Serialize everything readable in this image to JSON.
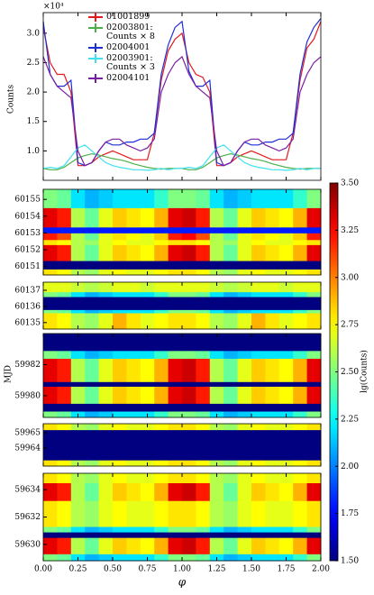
{
  "heatmap_ylabel": "MJD",
  "phase_bins": [
    0,
    0.1,
    0.2,
    0.3,
    0.4,
    0.5,
    0.6,
    0.7,
    0.8,
    0.9,
    1.0,
    1.1,
    1.2,
    1.3,
    1.4,
    1.5,
    1.6,
    1.7,
    1.8,
    1.9,
    2.0
  ],
  "colorbar": {
    "label": "lg(Counts)",
    "clim": [
      1.5,
      3.5
    ],
    "ticks": [
      {
        "value": 1.5,
        "label": "1.50"
      },
      {
        "value": 1.75,
        "label": "1.75"
      },
      {
        "value": 2.0,
        "label": "2.00"
      },
      {
        "value": 2.25,
        "label": "2.25"
      },
      {
        "value": 2.5,
        "label": "2.50"
      },
      {
        "value": 2.75,
        "label": "2.75"
      },
      {
        "value": 3.0,
        "label": "3.00"
      },
      {
        "value": 3.25,
        "label": "3.25"
      },
      {
        "value": 3.5,
        "label": "3.50"
      }
    ]
  },
  "chart_data": [
    {
      "type": "line",
      "ylabel": "Counts",
      "y_offset_label": "×10⁴",
      "x": [
        0,
        0.05,
        0.1,
        0.15,
        0.2,
        0.25,
        0.3,
        0.35,
        0.4,
        0.45,
        0.5,
        0.55,
        0.6,
        0.65,
        0.7,
        0.75,
        0.8,
        0.85,
        0.9,
        0.95,
        1.0,
        1.05,
        1.1,
        1.15,
        1.2,
        1.25,
        1.3,
        1.35,
        1.4,
        1.45,
        1.5,
        1.55,
        1.6,
        1.65,
        1.7,
        1.75,
        1.8,
        1.85,
        1.9,
        1.95,
        2.0
      ],
      "xlim": [
        0,
        2
      ],
      "ylim": [
        5000,
        33500
      ],
      "yticks": [
        {
          "value": 10000,
          "label": "1.0"
        },
        {
          "value": 15000,
          "label": "1.5"
        },
        {
          "value": 20000,
          "label": "2.0"
        },
        {
          "value": 25000,
          "label": "2.5"
        },
        {
          "value": 30000,
          "label": "3.0"
        }
      ],
      "series": [
        {
          "name": "01001899",
          "color": "#e41a1c",
          "values": [
            31000,
            25000,
            23000,
            23000,
            20000,
            7500,
            7500,
            8000,
            9000,
            9500,
            10000,
            9500,
            9000,
            8500,
            8500,
            8500,
            13000,
            22000,
            27000,
            29000,
            30000,
            25000,
            23000,
            22500,
            20000,
            7500,
            7500,
            8000,
            9000,
            9500,
            10000,
            9500,
            9000,
            8500,
            8500,
            8500,
            13000,
            22000,
            27500,
            29000,
            32000
          ]
        },
        {
          "name": "02003801: Counts × 8",
          "color": "#4daf4a",
          "values": [
            7000,
            6800,
            6800,
            7200,
            8000,
            8800,
            9200,
            9500,
            9300,
            9000,
            8700,
            8500,
            8200,
            7800,
            7500,
            7200,
            7000,
            6900,
            7000,
            7000,
            7000,
            6800,
            6800,
            7200,
            8000,
            8800,
            9200,
            9500,
            9300,
            9000,
            8700,
            8500,
            8200,
            7800,
            7500,
            7200,
            7000,
            6900,
            7000,
            7000,
            7000
          ]
        },
        {
          "name": "02004001",
          "color": "#1f2fd6",
          "values": [
            32000,
            23000,
            21000,
            21000,
            22000,
            8000,
            7500,
            8000,
            10000,
            11500,
            11000,
            11000,
            11500,
            11500,
            12000,
            12000,
            13000,
            23000,
            28000,
            31000,
            32000,
            23500,
            21000,
            21000,
            22000,
            8000,
            7500,
            8000,
            10000,
            11500,
            11000,
            11000,
            11500,
            11500,
            12000,
            12000,
            13000,
            23000,
            28500,
            31000,
            32500
          ]
        },
        {
          "name": "02003901: Counts × 3",
          "color": "#3fe0f0",
          "values": [
            7000,
            7200,
            7000,
            7500,
            9000,
            10500,
            11000,
            10000,
            9000,
            8000,
            7500,
            7200,
            7000,
            6800,
            6800,
            6700,
            6800,
            7000,
            6800,
            7000,
            7000,
            7200,
            7000,
            7500,
            9000,
            10500,
            11000,
            10000,
            9000,
            8000,
            7500,
            7200,
            7000,
            6800,
            6800,
            6700,
            6800,
            7000,
            6800,
            7000,
            7000
          ]
        },
        {
          "name": "02004101",
          "color": "#7b1fa2",
          "values": [
            26000,
            23000,
            21000,
            20000,
            19000,
            10000,
            7500,
            8000,
            10000,
            11500,
            12000,
            12000,
            11000,
            10500,
            10000,
            10500,
            12000,
            20000,
            23000,
            25000,
            26000,
            23000,
            21000,
            20000,
            19000,
            10000,
            7500,
            8000,
            10000,
            11500,
            12000,
            12000,
            11000,
            10500,
            10000,
            10500,
            12000,
            20000,
            23000,
            25000,
            26000
          ]
        }
      ]
    },
    {
      "type": "heatmap",
      "ylim": [
        60150.5,
        60155.6
      ],
      "yticks": [
        60151,
        60152,
        60153,
        60154,
        60155
      ],
      "row_edges": [
        60150.5,
        60150.85,
        60151.35,
        60152.3,
        60152.6,
        60153.0,
        60153.35,
        60154.5,
        60155.6
      ],
      "values": [
        [
          2.8,
          2.75,
          2.6,
          2.55,
          2.7,
          2.75,
          2.7,
          2.7,
          2.75,
          2.8,
          2.8,
          2.75,
          2.6,
          2.55,
          2.7,
          2.75,
          2.7,
          2.7,
          2.75,
          2.8
        ],
        [
          1.5,
          1.5,
          1.5,
          1.5,
          1.5,
          1.5,
          1.5,
          1.5,
          1.5,
          1.5,
          1.5,
          1.5,
          1.5,
          1.5,
          1.5,
          1.5,
          1.5,
          1.5,
          1.5,
          1.5
        ],
        [
          3.3,
          3.2,
          2.6,
          2.45,
          2.7,
          2.85,
          2.8,
          2.75,
          2.9,
          3.3,
          3.35,
          3.2,
          2.6,
          2.45,
          2.7,
          2.85,
          2.8,
          2.75,
          2.9,
          3.3
        ],
        [
          2.8,
          2.75,
          2.6,
          2.55,
          2.7,
          2.75,
          2.7,
          2.7,
          2.75,
          2.8,
          2.8,
          2.75,
          2.6,
          2.55,
          2.7,
          2.75,
          2.7,
          2.7,
          2.75,
          2.8
        ],
        [
          3.2,
          3.1,
          2.6,
          2.45,
          2.7,
          2.8,
          2.75,
          2.7,
          2.85,
          3.2,
          3.25,
          3.1,
          2.6,
          2.45,
          2.7,
          2.8,
          2.75,
          2.7,
          2.85,
          3.2
        ],
        [
          1.8,
          1.8,
          1.8,
          1.8,
          1.8,
          1.8,
          1.8,
          1.8,
          1.8,
          1.8,
          1.8,
          1.8,
          1.8,
          1.8,
          1.8,
          1.8,
          1.8,
          1.8,
          1.8,
          1.8
        ],
        [
          3.3,
          3.2,
          2.6,
          2.45,
          2.7,
          2.85,
          2.8,
          2.75,
          2.9,
          3.3,
          3.35,
          3.2,
          2.6,
          2.45,
          2.7,
          2.85,
          2.8,
          2.75,
          2.9,
          3.3
        ],
        [
          2.5,
          2.45,
          2.2,
          2.1,
          2.15,
          2.2,
          2.2,
          2.2,
          2.35,
          2.5,
          2.5,
          2.45,
          2.2,
          2.1,
          2.15,
          2.2,
          2.2,
          2.2,
          2.35,
          2.5
        ]
      ]
    },
    {
      "type": "heatmap",
      "ylim": [
        60134.6,
        60137.5
      ],
      "yticks": [
        60135,
        60136,
        60137
      ],
      "row_edges": [
        60134.6,
        60135.6,
        60135.8,
        60136.6,
        60136.9,
        60137.5
      ],
      "values": [
        [
          2.8,
          2.75,
          2.6,
          2.55,
          2.7,
          2.9,
          2.8,
          2.7,
          2.75,
          2.8,
          2.8,
          2.75,
          2.6,
          2.55,
          2.7,
          2.9,
          2.8,
          2.7,
          2.75,
          2.8
        ],
        [
          2.5,
          2.45,
          2.2,
          2.1,
          2.15,
          2.2,
          2.2,
          2.2,
          2.35,
          2.5,
          2.5,
          2.45,
          2.2,
          2.1,
          2.15,
          2.2,
          2.2,
          2.2,
          2.35,
          2.5
        ],
        [
          1.5,
          1.5,
          1.5,
          1.5,
          1.5,
          1.5,
          1.5,
          1.5,
          1.5,
          1.5,
          1.5,
          1.5,
          1.5,
          1.5,
          1.5,
          1.5,
          1.5,
          1.5,
          1.5,
          1.5
        ],
        [
          2.5,
          2.45,
          2.2,
          2.1,
          2.15,
          2.2,
          2.2,
          2.2,
          2.35,
          2.5,
          2.5,
          2.45,
          2.2,
          2.1,
          2.15,
          2.2,
          2.2,
          2.2,
          2.35,
          2.5
        ],
        [
          2.7,
          2.7,
          2.65,
          2.6,
          2.65,
          2.7,
          2.7,
          2.65,
          2.7,
          2.7,
          2.7,
          2.7,
          2.65,
          2.6,
          2.65,
          2.7,
          2.7,
          2.65,
          2.7,
          2.7
        ]
      ]
    },
    {
      "type": "heatmap",
      "ylim": [
        59978.6,
        59984
      ],
      "yticks": [
        59980,
        59982
      ],
      "row_edges": [
        59978.6,
        59979.0,
        59979.5,
        59980.6,
        59980.9,
        59982.4,
        59982.9,
        59984
      ],
      "values": [
        [
          2.5,
          2.45,
          2.2,
          2.1,
          2.15,
          2.2,
          2.2,
          2.2,
          2.35,
          2.5,
          2.5,
          2.45,
          2.2,
          2.1,
          2.15,
          2.2,
          2.2,
          2.2,
          2.35,
          2.5
        ],
        [
          1.5,
          1.5,
          1.5,
          1.5,
          1.5,
          1.5,
          1.5,
          1.5,
          1.5,
          1.5,
          1.5,
          1.5,
          1.5,
          1.5,
          1.5,
          1.5,
          1.5,
          1.5,
          1.5,
          1.5
        ],
        [
          3.3,
          3.2,
          2.6,
          2.45,
          2.7,
          2.85,
          2.8,
          2.75,
          2.9,
          3.3,
          3.35,
          3.2,
          2.6,
          2.45,
          2.7,
          2.85,
          2.8,
          2.75,
          2.9,
          3.3
        ],
        [
          1.5,
          1.5,
          1.5,
          1.5,
          1.5,
          1.5,
          1.5,
          1.5,
          1.5,
          1.5,
          1.5,
          1.5,
          1.5,
          1.5,
          1.5,
          1.5,
          1.5,
          1.5,
          1.5,
          1.5
        ],
        [
          3.3,
          3.2,
          2.6,
          2.45,
          2.7,
          2.85,
          2.8,
          2.75,
          2.9,
          3.3,
          3.35,
          3.2,
          2.6,
          2.45,
          2.7,
          2.85,
          2.8,
          2.75,
          2.9,
          3.3
        ],
        [
          2.5,
          2.45,
          2.2,
          2.1,
          2.15,
          2.2,
          2.2,
          2.2,
          2.35,
          2.5,
          2.5,
          2.45,
          2.2,
          2.1,
          2.15,
          2.2,
          2.2,
          2.2,
          2.35,
          2.5
        ],
        [
          1.5,
          1.5,
          1.5,
          1.5,
          1.5,
          1.5,
          1.5,
          1.5,
          1.5,
          1.5,
          1.5,
          1.5,
          1.5,
          1.5,
          1.5,
          1.5,
          1.5,
          1.5,
          1.5,
          1.5
        ]
      ]
    },
    {
      "type": "heatmap",
      "ylim": [
        59962.8,
        59965.6
      ],
      "yticks": [
        59964,
        59965
      ],
      "row_edges": [
        59962.8,
        59963.2,
        59965.2,
        59965.6
      ],
      "values": [
        [
          2.8,
          2.75,
          2.6,
          2.55,
          2.7,
          2.75,
          2.7,
          2.7,
          2.75,
          2.8,
          2.8,
          2.75,
          2.6,
          2.55,
          2.7,
          2.75,
          2.7,
          2.7,
          2.75,
          2.8
        ],
        [
          1.5,
          1.5,
          1.5,
          1.5,
          1.5,
          1.5,
          1.5,
          1.5,
          1.5,
          1.5,
          1.5,
          1.5,
          1.5,
          1.5,
          1.5,
          1.5,
          1.5,
          1.5,
          1.5,
          1.5
        ],
        [
          2.8,
          2.75,
          2.6,
          2.55,
          2.7,
          2.75,
          2.7,
          2.7,
          2.75,
          2.8,
          2.8,
          2.75,
          2.6,
          2.55,
          2.7,
          2.75,
          2.7,
          2.7,
          2.75,
          2.8
        ]
      ]
    },
    {
      "type": "heatmap",
      "ylim": [
        59628.8,
        59635.2
      ],
      "yticks": [
        59630,
        59632,
        59634
      ],
      "xlabel": "φ",
      "xticks": [
        {
          "value": 0,
          "label": "0.00"
        },
        {
          "value": 0.25,
          "label": "0.25"
        },
        {
          "value": 0.5,
          "label": "0.50"
        },
        {
          "value": 0.75,
          "label": "0.75"
        },
        {
          "value": 1.0,
          "label": "1.00"
        },
        {
          "value": 1.25,
          "label": "1.25"
        },
        {
          "value": 1.5,
          "label": "1.50"
        },
        {
          "value": 1.75,
          "label": "1.75"
        },
        {
          "value": 2.0,
          "label": "2.00"
        }
      ],
      "row_edges": [
        59628.8,
        59629.3,
        59630.5,
        59630.9,
        59631.3,
        59633.2,
        59634.5,
        59635.2
      ],
      "values": [
        [
          2.5,
          2.45,
          2.2,
          2.1,
          2.15,
          2.2,
          2.2,
          2.2,
          2.35,
          2.5,
          2.5,
          2.45,
          2.2,
          2.1,
          2.15,
          2.2,
          2.2,
          2.2,
          2.35,
          2.5
        ],
        [
          3.3,
          3.2,
          2.6,
          2.45,
          2.7,
          2.85,
          2.8,
          2.75,
          2.9,
          3.3,
          3.35,
          3.2,
          2.6,
          2.45,
          2.7,
          2.85,
          2.8,
          2.75,
          2.9,
          3.3
        ],
        [
          1.5,
          1.5,
          1.5,
          1.5,
          1.5,
          1.5,
          1.5,
          1.5,
          1.5,
          1.5,
          1.5,
          1.5,
          1.5,
          1.5,
          1.5,
          1.5,
          1.5,
          1.5,
          1.5,
          1.5
        ],
        [
          2.5,
          2.45,
          2.2,
          2.1,
          2.15,
          2.2,
          2.2,
          2.2,
          2.35,
          2.5,
          2.5,
          2.45,
          2.2,
          2.1,
          2.15,
          2.2,
          2.2,
          2.2,
          2.35,
          2.5
        ],
        [
          2.8,
          2.75,
          2.6,
          2.55,
          2.7,
          2.75,
          2.7,
          2.7,
          2.75,
          2.8,
          2.8,
          2.75,
          2.6,
          2.55,
          2.7,
          2.75,
          2.7,
          2.7,
          2.75,
          2.8
        ],
        [
          3.3,
          3.2,
          2.6,
          2.45,
          2.7,
          2.85,
          2.8,
          2.75,
          2.9,
          3.3,
          3.35,
          3.2,
          2.6,
          2.45,
          2.7,
          2.85,
          2.8,
          2.75,
          2.9,
          3.3
        ],
        [
          2.8,
          2.75,
          2.6,
          2.55,
          2.7,
          2.75,
          2.7,
          2.7,
          2.75,
          2.8,
          2.8,
          2.75,
          2.6,
          2.55,
          2.7,
          2.75,
          2.7,
          2.7,
          2.75,
          2.8
        ]
      ]
    }
  ]
}
